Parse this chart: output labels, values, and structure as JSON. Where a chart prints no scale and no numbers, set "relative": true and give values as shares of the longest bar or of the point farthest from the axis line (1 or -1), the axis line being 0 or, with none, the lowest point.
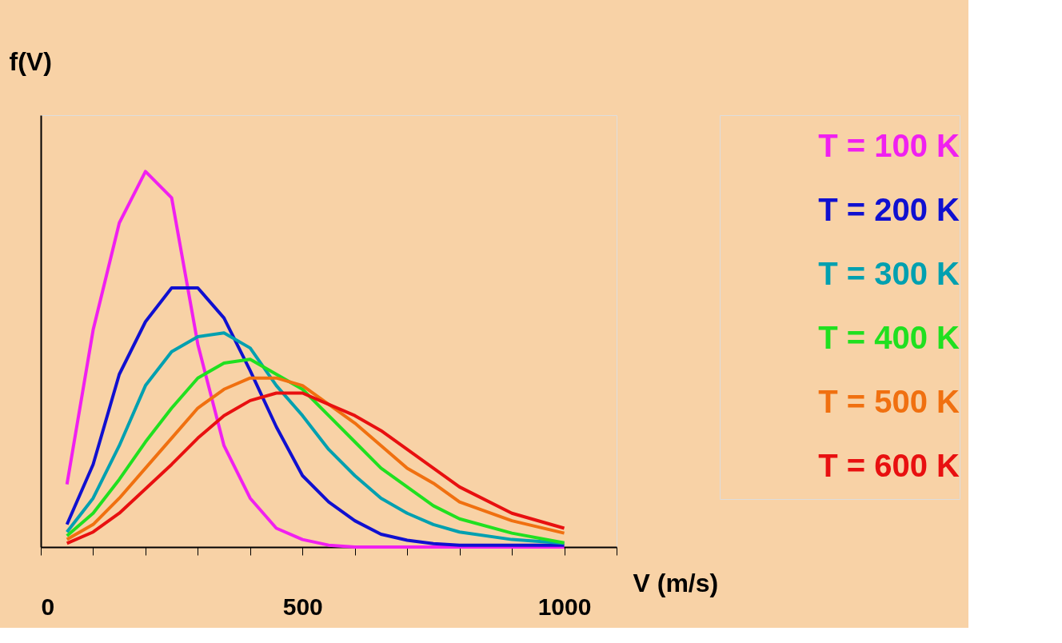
{
  "chart_data": {
    "type": "line",
    "relative": true,
    "xlabel": "V (m/s)",
    "ylabel": "f(V)",
    "x": [
      50,
      100,
      150,
      200,
      250,
      300,
      350,
      400,
      450,
      500,
      550,
      600,
      650,
      700,
      750,
      800,
      900,
      1000
    ],
    "xlim": [
      0,
      1100
    ],
    "xticks": [
      0,
      {
        "value": 100,
        "label": null
      },
      {
        "value": 200,
        "label": null
      },
      {
        "value": 300,
        "label": null
      },
      {
        "value": 400,
        "label": null
      },
      500,
      {
        "value": 600,
        "label": null
      },
      {
        "value": 700,
        "label": null
      },
      {
        "value": 800,
        "label": null
      },
      {
        "value": 900,
        "label": null
      },
      1000,
      {
        "value": 1100,
        "label": null
      }
    ],
    "legend": "top right",
    "grid": false,
    "marker": "none",
    "line_style": "solid",
    "series": [
      {
        "name": "T = 100 K",
        "color": "#f020f0",
        "values": [
          0.167,
          0.578,
          0.863,
          1.0,
          0.93,
          0.54,
          0.27,
          0.13,
          0.05,
          0.02,
          0.005,
          0,
          0,
          0,
          0,
          0,
          0,
          0
        ]
      },
      {
        "name": "T = 200 K",
        "color": "#1010d0",
        "values": [
          0.06,
          0.22,
          0.46,
          0.6,
          0.69,
          0.69,
          0.61,
          0.47,
          0.32,
          0.19,
          0.12,
          0.07,
          0.034,
          0.018,
          0.009,
          0.005,
          0.005,
          0.005
        ]
      },
      {
        "name": "T = 300 K",
        "color": "#00a0b0",
        "values": [
          0.04,
          0.13,
          0.27,
          0.43,
          0.52,
          0.56,
          0.57,
          0.53,
          0.43,
          0.35,
          0.26,
          0.19,
          0.13,
          0.09,
          0.06,
          0.04,
          0.02,
          0.01
        ]
      },
      {
        "name": "T = 400 K",
        "color": "#20e020",
        "values": [
          0.03,
          0.09,
          0.18,
          0.28,
          0.37,
          0.45,
          0.49,
          0.5,
          0.46,
          0.42,
          0.35,
          0.28,
          0.21,
          0.16,
          0.11,
          0.075,
          0.037,
          0.011
        ]
      },
      {
        "name": "T = 500 K",
        "color": "#f07010",
        "values": [
          0.02,
          0.06,
          0.13,
          0.21,
          0.29,
          0.37,
          0.42,
          0.45,
          0.45,
          0.43,
          0.38,
          0.33,
          0.27,
          0.21,
          0.17,
          0.12,
          0.07,
          0.037
        ]
      },
      {
        "name": "T = 600 K",
        "color": "#e81010",
        "values": [
          0.01,
          0.04,
          0.09,
          0.155,
          0.22,
          0.29,
          0.35,
          0.39,
          0.41,
          0.41,
          0.38,
          0.35,
          0.31,
          0.26,
          0.21,
          0.16,
          0.09,
          0.05
        ]
      }
    ]
  }
}
